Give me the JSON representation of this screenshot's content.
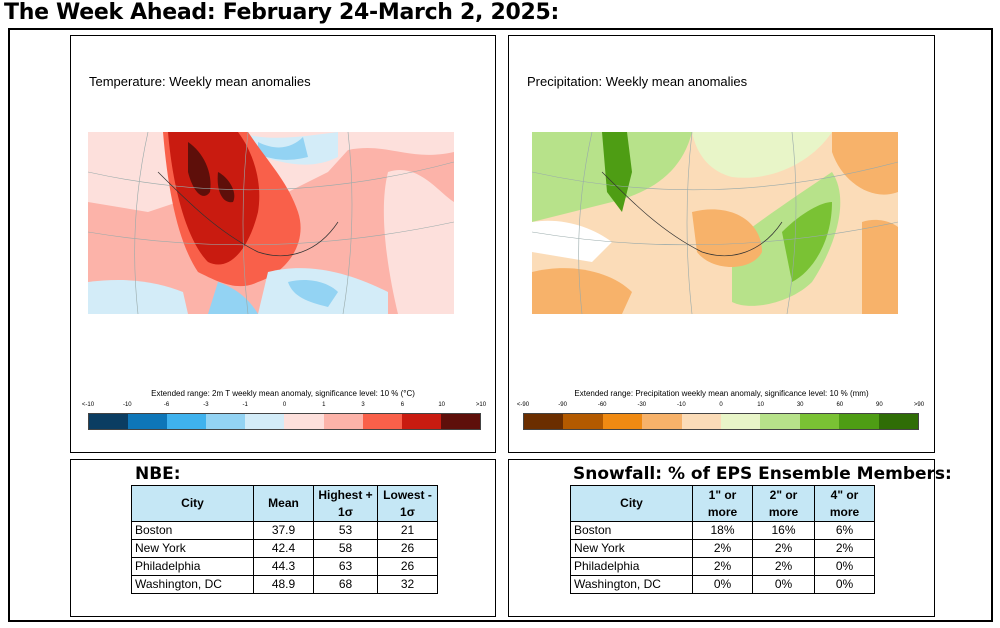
{
  "title": "The Week Ahead: February 24-March 2, 2025:",
  "temperature_panel": {
    "title": "Temperature: Weekly mean anomalies",
    "scale_label": "Extended range: 2m T weekly mean anomaly, significance level: 10 % (°C)",
    "ticks": [
      "<-10",
      "-10",
      "-6",
      "-3",
      "-1",
      "0",
      "1",
      "3",
      "6",
      "10",
      ">10"
    ],
    "colors": [
      "#0b3d62",
      "#0e76b8",
      "#3fb2ee",
      "#93d3f3",
      "#d3ecf8",
      "#fde0dc",
      "#fcb3a9",
      "#f9604a",
      "#c91b10",
      "#5e0f0a"
    ]
  },
  "precipitation_panel": {
    "title": "Precipitation: Weekly mean anomalies",
    "scale_label": "Extended range: Precipitation weekly mean anomaly, significance level: 10 % (mm)",
    "ticks": [
      "<-90",
      "-90",
      "-60",
      "-30",
      "-10",
      "0",
      "10",
      "30",
      "60",
      "90",
      ">90"
    ],
    "colors": [
      "#6b2e00",
      "#b35a00",
      "#f08a12",
      "#f7b26a",
      "#fbdcb8",
      "#e8f5c8",
      "#b7e28a",
      "#7ac234",
      "#4e9d14",
      "#2f6d06"
    ]
  },
  "nbe": {
    "title": "NBE:",
    "headers": [
      "City",
      "Mean",
      "Highest + 1σ",
      "Lowest - 1σ"
    ],
    "rows": [
      [
        "Boston",
        "37.9",
        "53",
        "21"
      ],
      [
        "New York",
        "42.4",
        "58",
        "26"
      ],
      [
        "Philadelphia",
        "44.3",
        "63",
        "26"
      ],
      [
        "Washington, DC",
        "48.9",
        "68",
        "32"
      ]
    ]
  },
  "snowfall": {
    "title": "Snowfall: % of EPS Ensemble Members:",
    "headers": [
      "City",
      "1\" or more",
      "2\" or more",
      "4\" or more"
    ],
    "rows": [
      [
        "Boston",
        "18%",
        "16%",
        "6%"
      ],
      [
        "New York",
        "2%",
        "2%",
        "2%"
      ],
      [
        "Philadelphia",
        "2%",
        "2%",
        "0%"
      ],
      [
        "Washington, DC",
        "0%",
        "0%",
        "0%"
      ]
    ]
  }
}
